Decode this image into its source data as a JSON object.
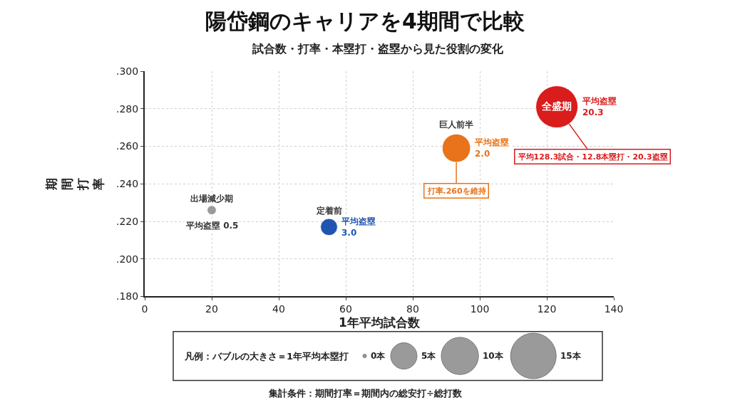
{
  "chart_data": {
    "type": "bubble",
    "title": "陽岱鋼のキャリアを4期間で比較",
    "subtitle": "試合数・打率・本塁打・盗塁から見た役割の変化",
    "xlabel": "1年平均試合数",
    "ylabel": "期間打率",
    "legend_title": "凡例：バブルの大きさ＝1年平均本塁打",
    "series": [
      {
        "name": "出場減少期",
        "color": "#9a9a9a",
        "x": [
          20
        ],
        "values": [
          0.226
        ],
        "sizes": [
          0.6
        ]
      },
      {
        "name": "定着前",
        "color": "#1f55b0",
        "x": [
          55
        ],
        "values": [
          0.217
        ],
        "sizes": [
          2.1
        ]
      },
      {
        "name": "巨人前半",
        "color": "#e8731a",
        "x": [
          93
        ],
        "values": [
          0.259
        ],
        "sizes": [
          5.8
        ]
      },
      {
        "name": "全盛期",
        "color": "#d91c1c",
        "x": [
          123
        ],
        "values": [
          0.281
        ],
        "sizes": [
          12.8
        ]
      }
    ],
    "size_legend": [
      {
        "value": 0,
        "label": "0本"
      },
      {
        "value": 5,
        "label": "5本"
      },
      {
        "value": 10,
        "label": "10本"
      },
      {
        "value": 15,
        "label": "15本"
      }
    ],
    "xlim": [
      0,
      140
    ],
    "xticks": [
      0,
      20,
      40,
      60,
      80,
      100,
      120,
      140
    ],
    "ylim": [
      0.18,
      0.3
    ],
    "yticks": [
      {
        "value": 0.18,
        "label": ".180"
      },
      {
        "value": 0.2,
        "label": ".200"
      },
      {
        "value": 0.22,
        "label": ".220"
      },
      {
        "value": 0.24,
        "label": ".240"
      },
      {
        "value": 0.26,
        "label": ".260"
      },
      {
        "value": 0.28,
        "label": ".280"
      },
      {
        "value": 0.3,
        "label": ".300"
      }
    ],
    "grid": true,
    "annotations": [
      {
        "text": "平均盗塁 0.5",
        "x": 20,
        "y": 0.226
      },
      {
        "text": "平均盗塁\n3.0",
        "x": 55,
        "y": 0.217
      },
      {
        "text": "平均盗塁\n2.0",
        "x": 93,
        "y": 0.259
      },
      {
        "text": "平均盗塁\n20.3",
        "x": 123,
        "y": 0.281
      },
      {
        "text": "打率.260を維持",
        "x": 93,
        "y": 0.259
      },
      {
        "text": "平均128.3試合・12.8本塁打・20.3盗塁",
        "x": 123,
        "y": 0.281
      },
      "集計条件：期間打率＝期間内の総安打÷総打数"
    ]
  }
}
